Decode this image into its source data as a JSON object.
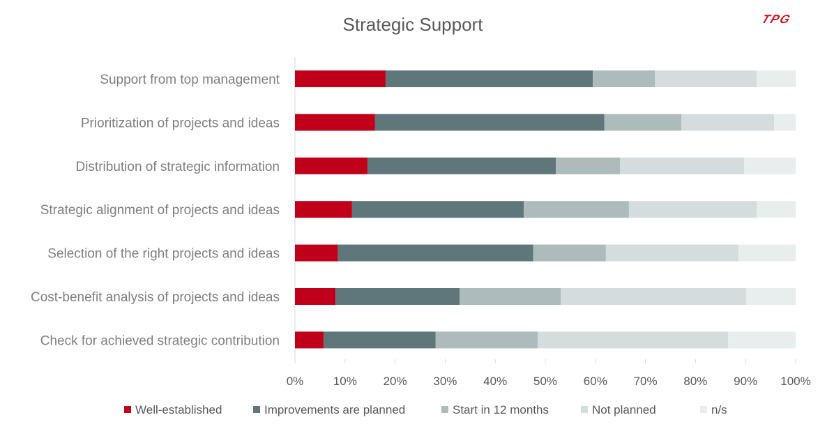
{
  "logo": "TPG",
  "chart_data": {
    "type": "bar",
    "orientation": "horizontal",
    "stacked": true,
    "percent": true,
    "title": "Strategic Support",
    "xlabel": "",
    "ylabel": "",
    "xlim": [
      0,
      100
    ],
    "xticks": [
      "0%",
      "10%",
      "20%",
      "30%",
      "40%",
      "50%",
      "60%",
      "70%",
      "80%",
      "90%",
      "100%"
    ],
    "grid": false,
    "legend": "bottom",
    "categories": [
      "Support from top management",
      "Prioritization of projects and ideas",
      "Distribution of strategic information",
      "Strategic alignment of projects and ideas",
      "Selection of the right projects and ideas",
      "Cost-benefit analysis of projects and ideas",
      "Check for achieved strategic contribution"
    ],
    "series": [
      {
        "name": "Well-established",
        "color": "#c0001a",
        "values": [
          18.1,
          16.0,
          14.5,
          11.4,
          8.6,
          8.1,
          5.7
        ]
      },
      {
        "name": "Improvements are planned",
        "color": "#5f767a",
        "values": [
          41.4,
          45.8,
          37.6,
          34.3,
          39.0,
          24.8,
          22.4
        ]
      },
      {
        "name": "Start in 12 months",
        "color": "#adbbbd",
        "values": [
          12.4,
          15.4,
          12.8,
          21.0,
          14.5,
          20.2,
          20.4
        ]
      },
      {
        "name": "Not planned",
        "color": "#d5dcde",
        "values": [
          20.3,
          18.5,
          24.8,
          25.5,
          26.5,
          37.0,
          38.0
        ]
      },
      {
        "name": "n/s",
        "color": "#e8edee",
        "values": [
          7.8,
          4.3,
          10.3,
          7.8,
          11.4,
          9.9,
          13.5
        ]
      }
    ]
  }
}
